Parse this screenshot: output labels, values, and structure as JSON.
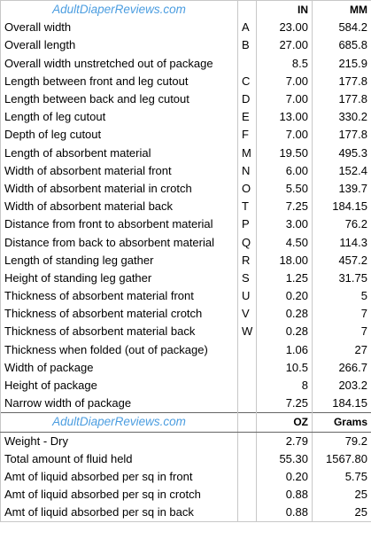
{
  "header": {
    "site": "AdultDiaperReviews.com",
    "col_in": "IN",
    "col_mm": "MM"
  },
  "measurements": [
    {
      "label": "Overall width",
      "code": "A",
      "in": "23.00",
      "mm": "584.2"
    },
    {
      "label": "Overall length",
      "code": "B",
      "in": "27.00",
      "mm": "685.8"
    },
    {
      "label": "Overall width unstretched out of package",
      "code": "",
      "in": "8.5",
      "mm": "215.9"
    },
    {
      "label": "Length between front and leg cutout",
      "code": "C",
      "in": "7.00",
      "mm": "177.8"
    },
    {
      "label": "Length between back and leg cutout",
      "code": "D",
      "in": "7.00",
      "mm": "177.8"
    },
    {
      "label": "Length of leg cutout",
      "code": "E",
      "in": "13.00",
      "mm": "330.2"
    },
    {
      "label": "Depth of leg cutout",
      "code": "F",
      "in": "7.00",
      "mm": "177.8"
    },
    {
      "label": "Length of absorbent material",
      "code": "M",
      "in": "19.50",
      "mm": "495.3"
    },
    {
      "label": "Width of absorbent material front",
      "code": "N",
      "in": "6.00",
      "mm": "152.4"
    },
    {
      "label": "Width of absorbent material in crotch",
      "code": "O",
      "in": "5.50",
      "mm": "139.7"
    },
    {
      "label": "Width of absorbent material back",
      "code": "T",
      "in": "7.25",
      "mm": "184.15"
    },
    {
      "label": "Distance from front to absorbent material",
      "code": "P",
      "in": "3.00",
      "mm": "76.2"
    },
    {
      "label": "Distance from back to absorbent material",
      "code": "Q",
      "in": "4.50",
      "mm": "114.3"
    },
    {
      "label": "Length of standing leg gather",
      "code": "R",
      "in": "18.00",
      "mm": "457.2"
    },
    {
      "label": "Height of standing leg gather",
      "code": "S",
      "in": "1.25",
      "mm": "31.75"
    },
    {
      "label": "Thickness of absorbent material front",
      "code": "U",
      "in": "0.20",
      "mm": "5"
    },
    {
      "label": "Thickness of absorbent material crotch",
      "code": "V",
      "in": "0.28",
      "mm": "7"
    },
    {
      "label": "Thickness of absorbent material back",
      "code": "W",
      "in": "0.28",
      "mm": "7"
    },
    {
      "label": "Thickness when folded (out of package)",
      "code": "",
      "in": "1.06",
      "mm": "27"
    },
    {
      "label": "Width of package",
      "code": "",
      "in": "10.5",
      "mm": "266.7"
    },
    {
      "label": "Height of package",
      "code": "",
      "in": "8",
      "mm": "203.2"
    },
    {
      "label": "Narrow width of package",
      "code": "",
      "in": "7.25",
      "mm": "184.15"
    }
  ],
  "header2": {
    "site": "AdultDiaperReviews.com",
    "col_oz": "OZ",
    "col_grams": "Grams"
  },
  "weights": [
    {
      "label": "Weight - Dry",
      "oz": "2.79",
      "grams": "79.2"
    },
    {
      "label": "Total amount of fluid held",
      "oz": "55.30",
      "grams": "1567.80"
    },
    {
      "label": "Amt of liquid absorbed per sq in front",
      "oz": "0.20",
      "grams": "5.75"
    },
    {
      "label": "Amt of liquid absorbed per sq in crotch",
      "oz": "0.88",
      "grams": "25"
    },
    {
      "label": "Amt of liquid absorbed per sq in back",
      "oz": "0.88",
      "grams": "25"
    }
  ]
}
